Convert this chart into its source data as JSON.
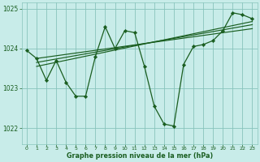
{
  "bg_color": "#c8ece9",
  "grid_color": "#88c4bc",
  "line_color": "#1a5e20",
  "xlabel": "Graphe pression niveau de la mer (hPa)",
  "ylim": [
    1021.6,
    1025.15
  ],
  "xlim": [
    -0.5,
    23.5
  ],
  "yticks": [
    1022,
    1023,
    1024,
    1025
  ],
  "xticks": [
    0,
    1,
    2,
    3,
    4,
    5,
    6,
    7,
    8,
    9,
    10,
    11,
    12,
    13,
    14,
    15,
    16,
    17,
    18,
    19,
    20,
    21,
    22,
    23
  ],
  "main_x": [
    0,
    1,
    2,
    3,
    4,
    5,
    6,
    7,
    8,
    9,
    10,
    11,
    12,
    13,
    14,
    15,
    16,
    17,
    18,
    19,
    20,
    21,
    22,
    23
  ],
  "main_y": [
    1023.95,
    1023.75,
    1023.2,
    1023.7,
    1023.15,
    1022.8,
    1022.8,
    1023.8,
    1024.55,
    1024.0,
    1024.45,
    1024.4,
    1023.55,
    1022.55,
    1022.1,
    1022.05,
    1023.6,
    1024.05,
    1024.1,
    1024.2,
    1024.45,
    1024.9,
    1024.85,
    1024.75
  ],
  "trend1_x": [
    1,
    23
  ],
  "trend1_y": [
    1023.75,
    1024.5
  ],
  "trend2_x": [
    1,
    23
  ],
  "trend2_y": [
    1023.65,
    1024.6
  ],
  "trend3_x": [
    1,
    23
  ],
  "trend3_y": [
    1023.55,
    1024.68
  ],
  "ytick_fontsize": 5.5,
  "xtick_fontsize": 4.5,
  "xlabel_fontsize": 5.8
}
